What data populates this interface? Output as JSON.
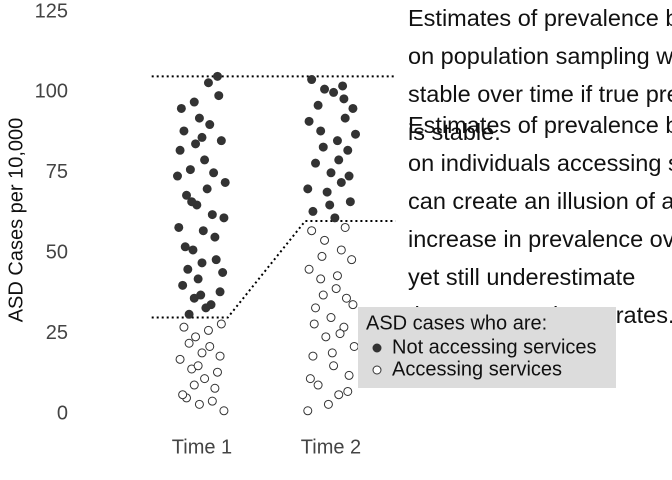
{
  "chart_data": {
    "type": "scatter",
    "y_label": "ASD Cases per 10,000",
    "xlim": [
      0.4,
      2.6
    ],
    "xticks": [
      {
        "value": 1,
        "label": "Time 1"
      },
      {
        "value": 2,
        "label": "Time 2"
      }
    ],
    "ylim": [
      0,
      125
    ],
    "yticks": [
      0,
      25,
      50,
      75,
      100,
      125
    ],
    "grid": false,
    "legend_title": "ASD cases who are:",
    "legend_position": "right",
    "series": [
      {
        "name": "Not accessing services",
        "color": "#333333",
        "fill": "#333333",
        "x": [
          0.86,
          0.94,
          1.05,
          1.12,
          0.98,
          0.83,
          1.15,
          0.91,
          1.02,
          1.18,
          0.88,
          0.96,
          1.08,
          0.82,
          1.1,
          0.93,
          1.0,
          1.16,
          0.85,
          0.99,
          1.07,
          0.9,
          1.13,
          0.95,
          1.04,
          0.87,
          1.11,
          0.97,
          1.06,
          0.84,
          1.01,
          1.14,
          0.92,
          1.09,
          0.89,
          1.03,
          0.81,
          1.17,
          1.0,
          0.94,
          1.85,
          1.95,
          2.1,
          2.17,
          1.83,
          1.92,
          2.05,
          2.13,
          1.88,
          2.0,
          2.08,
          1.97,
          2.15,
          1.86,
          2.03,
          2.19,
          1.9,
          2.11,
          2.06,
          1.94,
          2.02,
          1.82,
          2.14,
          1.99,
          2.09
        ],
        "values": [
          88,
          97,
          103,
          105,
          92,
          82,
          85,
          76,
          79,
          72,
          68,
          65,
          62,
          58,
          55,
          51,
          47,
          44,
          40,
          37,
          34,
          31,
          99,
          84,
          70,
          52,
          48,
          42,
          90,
          95,
          57,
          38,
          66,
          75,
          45,
          33,
          74,
          61,
          86,
          36,
          104,
          101,
          98,
          95,
          91,
          88,
          85,
          82,
          78,
          75,
          72,
          69,
          66,
          63,
          61,
          87,
          96,
          92,
          79,
          83,
          100,
          70,
          74,
          65,
          102
        ]
      },
      {
        "name": "Accessing services",
        "color": "#333333",
        "fill": "#ffffff",
        "x": [
          0.86,
          0.95,
          1.06,
          1.14,
          0.83,
          0.92,
          1.02,
          1.1,
          0.88,
          0.98,
          1.17,
          1.05,
          0.9,
          1.12,
          0.94,
          1.0,
          1.08,
          0.85,
          1.15,
          0.97,
          1.85,
          1.95,
          2.08,
          2.16,
          1.83,
          1.92,
          2.04,
          2.12,
          1.88,
          2.0,
          2.1,
          1.96,
          2.18,
          1.86,
          2.02,
          2.14,
          1.9,
          2.06,
          1.98,
          1.82,
          2.11,
          1.93,
          2.05,
          2.17,
          1.87,
          2.01,
          2.13,
          1.94,
          2.07,
          1.84
        ],
        "values": [
          27,
          24,
          21,
          18,
          17,
          14,
          11,
          8,
          5,
          3,
          1,
          26,
          22,
          13,
          9,
          19,
          4,
          6,
          28,
          15,
          57,
          54,
          51,
          48,
          45,
          42,
          39,
          36,
          33,
          30,
          27,
          24,
          21,
          18,
          15,
          12,
          9,
          6,
          3,
          1,
          58,
          49,
          43,
          34,
          28,
          19,
          7,
          37,
          25,
          11
        ]
      }
    ],
    "reference_lines": [
      {
        "x": [
          0.61,
          2.5
        ],
        "y": [
          105,
          105
        ]
      },
      {
        "x": [
          0.61,
          1.2,
          1.8,
          2.5
        ],
        "y": [
          30,
          30,
          60,
          60
        ]
      }
    ],
    "annotations": [
      {
        "lines": [
          "Estimates of prevalence based",
          "on population sampling will be",
          "stable over time if true prevalence",
          "is stable."
        ]
      },
      {
        "lines": [
          "Estimates of prevalence based",
          "on individuals accessing services",
          "can create an illusion of an",
          "increase in prevalence over time,",
          "yet still underestimate",
          "the true prevalence rates."
        ]
      }
    ]
  }
}
